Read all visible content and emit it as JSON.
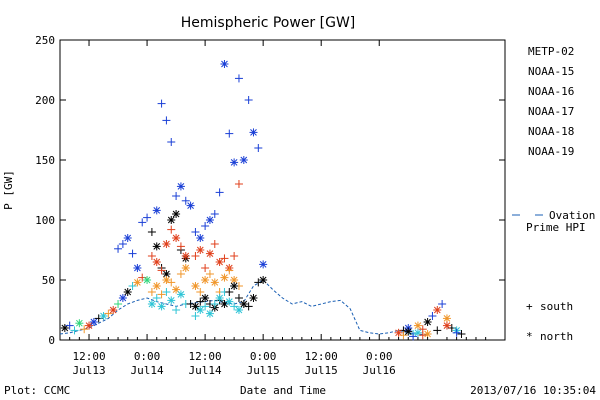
{
  "chart_data": {
    "type": "scatter",
    "title": "Hemispheric Power [GW]",
    "ylabel": "P [GW]",
    "xlabel": "Date and Time",
    "ylim": [
      0,
      250
    ],
    "xlim_hours": [
      -6,
      86
    ],
    "yticks": [
      0,
      50,
      100,
      150,
      200,
      250
    ],
    "xticks": [
      {
        "hour": 0,
        "time": "12:00",
        "date": "Jul13"
      },
      {
        "hour": 12,
        "time": "0:00",
        "date": "Jul14"
      },
      {
        "hour": 24,
        "time": "12:00",
        "date": "Jul14"
      },
      {
        "hour": 36,
        "time": "0:00",
        "date": "Jul15"
      },
      {
        "hour": 48,
        "time": "12:00",
        "date": "Jul15"
      },
      {
        "hour": 60,
        "time": "0:00",
        "date": "Jul16"
      }
    ],
    "series": [
      {
        "name": "METP-02",
        "color": "#000000"
      },
      {
        "name": "NOAA-15",
        "color": "#1a3fd6"
      },
      {
        "name": "NOAA-16",
        "color": "#2ec4d6"
      },
      {
        "name": "NOAA-17",
        "color": "#2ed67a"
      },
      {
        "name": "NOAA-18",
        "color": "#f0962a"
      },
      {
        "name": "NOAA-19",
        "color": "#e0401c"
      }
    ],
    "ovation_label_1": "Ovation",
    "ovation_label_2": "Prime HPI",
    "ovation_color": "#1a5fb4",
    "marker_legend": [
      {
        "symbol": "+",
        "label": "south"
      },
      {
        "symbol": "*",
        "label": "north"
      }
    ],
    "ovation": [
      [
        -6,
        5
      ],
      [
        -4,
        6
      ],
      [
        -2,
        8
      ],
      [
        0,
        10
      ],
      [
        2,
        14
      ],
      [
        4,
        18
      ],
      [
        6,
        25
      ],
      [
        8,
        30
      ],
      [
        10,
        33
      ],
      [
        12,
        35
      ],
      [
        14,
        32
      ],
      [
        16,
        30
      ],
      [
        18,
        28
      ],
      [
        20,
        30
      ],
      [
        22,
        31
      ],
      [
        24,
        32
      ],
      [
        26,
        33
      ],
      [
        28,
        31
      ],
      [
        30,
        30
      ],
      [
        32,
        32
      ],
      [
        34,
        45
      ],
      [
        36,
        50
      ],
      [
        38,
        42
      ],
      [
        40,
        35
      ],
      [
        42,
        30
      ],
      [
        44,
        32
      ],
      [
        46,
        28
      ],
      [
        48,
        30
      ],
      [
        50,
        32
      ],
      [
        52,
        33
      ],
      [
        54,
        26
      ],
      [
        56,
        8
      ],
      [
        58,
        6
      ],
      [
        60,
        5
      ],
      [
        62,
        6
      ],
      [
        64,
        8
      ],
      [
        66,
        6
      ],
      [
        68,
        5
      ],
      [
        70,
        4
      ]
    ],
    "points": [
      [
        -5,
        10,
        0,
        1
      ],
      [
        -4,
        12,
        1,
        0
      ],
      [
        -3,
        8,
        2,
        0
      ],
      [
        -2,
        14,
        3,
        1
      ],
      [
        -1,
        9,
        4,
        0
      ],
      [
        0,
        12,
        5,
        1
      ],
      [
        1,
        15,
        1,
        1
      ],
      [
        2,
        18,
        0,
        0
      ],
      [
        3,
        20,
        2,
        1
      ],
      [
        4,
        22,
        4,
        0
      ],
      [
        5,
        25,
        5,
        1
      ],
      [
        6,
        30,
        3,
        0
      ],
      [
        7,
        35,
        1,
        1
      ],
      [
        8,
        40,
        0,
        1
      ],
      [
        9,
        45,
        2,
        0
      ],
      [
        10,
        48,
        4,
        1
      ],
      [
        11,
        52,
        5,
        0
      ],
      [
        12,
        50,
        3,
        1
      ],
      [
        6,
        76,
        1,
        0
      ],
      [
        7,
        80,
        1,
        0
      ],
      [
        8,
        85,
        1,
        1
      ],
      [
        9,
        72,
        1,
        0
      ],
      [
        10,
        60,
        1,
        1
      ],
      [
        11,
        98,
        1,
        0
      ],
      [
        12,
        102,
        1,
        0
      ],
      [
        14,
        108,
        1,
        1
      ],
      [
        15,
        197,
        1,
        0
      ],
      [
        16,
        183,
        1,
        0
      ],
      [
        17,
        165,
        1,
        0
      ],
      [
        18,
        120,
        1,
        0
      ],
      [
        19,
        128,
        1,
        1
      ],
      [
        20,
        116,
        1,
        0
      ],
      [
        21,
        112,
        1,
        1
      ],
      [
        13,
        90,
        0,
        0
      ],
      [
        14,
        78,
        0,
        1
      ],
      [
        15,
        60,
        0,
        0
      ],
      [
        16,
        55,
        0,
        1
      ],
      [
        17,
        100,
        0,
        1
      ],
      [
        18,
        105,
        0,
        1
      ],
      [
        19,
        75,
        0,
        0
      ],
      [
        20,
        68,
        0,
        1
      ],
      [
        13,
        70,
        5,
        0
      ],
      [
        14,
        65,
        5,
        1
      ],
      [
        15,
        58,
        5,
        0
      ],
      [
        16,
        80,
        5,
        1
      ],
      [
        17,
        92,
        5,
        0
      ],
      [
        18,
        85,
        5,
        1
      ],
      [
        19,
        78,
        5,
        0
      ],
      [
        20,
        70,
        5,
        1
      ],
      [
        13,
        40,
        4,
        0
      ],
      [
        14,
        45,
        4,
        1
      ],
      [
        15,
        38,
        4,
        0
      ],
      [
        16,
        50,
        4,
        1
      ],
      [
        17,
        48,
        4,
        0
      ],
      [
        18,
        42,
        4,
        1
      ],
      [
        19,
        55,
        4,
        0
      ],
      [
        20,
        60,
        4,
        1
      ],
      [
        13,
        30,
        2,
        1
      ],
      [
        14,
        35,
        2,
        0
      ],
      [
        15,
        28,
        2,
        1
      ],
      [
        16,
        40,
        2,
        0
      ],
      [
        17,
        33,
        2,
        1
      ],
      [
        18,
        25,
        2,
        0
      ],
      [
        19,
        38,
        2,
        1
      ],
      [
        20,
        30,
        2,
        0
      ],
      [
        21,
        30,
        0,
        0
      ],
      [
        22,
        28,
        0,
        1
      ],
      [
        23,
        32,
        0,
        0
      ],
      [
        24,
        35,
        0,
        1
      ],
      [
        25,
        30,
        0,
        0
      ],
      [
        26,
        27,
        0,
        1
      ],
      [
        27,
        33,
        0,
        0
      ],
      [
        28,
        30,
        0,
        1
      ],
      [
        22,
        90,
        1,
        0
      ],
      [
        23,
        85,
        1,
        1
      ],
      [
        24,
        95,
        1,
        0
      ],
      [
        25,
        100,
        1,
        1
      ],
      [
        26,
        105,
        1,
        0
      ],
      [
        27,
        123,
        1,
        0
      ],
      [
        28,
        230,
        1,
        1
      ],
      [
        29,
        172,
        1,
        0
      ],
      [
        30,
        148,
        1,
        1
      ],
      [
        31,
        218,
        1,
        0
      ],
      [
        32,
        150,
        1,
        1
      ],
      [
        33,
        200,
        1,
        0
      ],
      [
        34,
        173,
        1,
        1
      ],
      [
        35,
        160,
        1,
        0
      ],
      [
        36,
        63,
        1,
        1
      ],
      [
        22,
        70,
        5,
        0
      ],
      [
        23,
        75,
        5,
        1
      ],
      [
        24,
        60,
        5,
        0
      ],
      [
        25,
        72,
        5,
        1
      ],
      [
        26,
        80,
        5,
        0
      ],
      [
        27,
        65,
        5,
        1
      ],
      [
        28,
        68,
        5,
        0
      ],
      [
        29,
        60,
        5,
        1
      ],
      [
        30,
        70,
        5,
        0
      ],
      [
        31,
        130,
        5,
        0
      ],
      [
        22,
        45,
        4,
        1
      ],
      [
        23,
        40,
        4,
        0
      ],
      [
        24,
        50,
        4,
        1
      ],
      [
        25,
        55,
        4,
        0
      ],
      [
        26,
        48,
        4,
        1
      ],
      [
        27,
        40,
        4,
        0
      ],
      [
        28,
        52,
        4,
        1
      ],
      [
        29,
        58,
        4,
        0
      ],
      [
        30,
        50,
        4,
        1
      ],
      [
        31,
        45,
        4,
        0
      ],
      [
        22,
        20,
        2,
        0
      ],
      [
        23,
        25,
        2,
        1
      ],
      [
        24,
        28,
        2,
        0
      ],
      [
        25,
        22,
        2,
        1
      ],
      [
        26,
        30,
        2,
        0
      ],
      [
        27,
        35,
        2,
        1
      ],
      [
        28,
        40,
        2,
        0
      ],
      [
        29,
        32,
        2,
        1
      ],
      [
        30,
        28,
        2,
        0
      ],
      [
        31,
        25,
        2,
        1
      ],
      [
        29,
        40,
        0,
        0
      ],
      [
        30,
        45,
        0,
        1
      ],
      [
        31,
        35,
        0,
        0
      ],
      [
        32,
        30,
        0,
        1
      ],
      [
        33,
        28,
        0,
        0
      ],
      [
        34,
        35,
        0,
        1
      ],
      [
        35,
        48,
        0,
        0
      ],
      [
        36,
        50,
        0,
        1
      ],
      [
        65,
        8,
        0,
        0
      ],
      [
        66,
        10,
        1,
        1
      ],
      [
        67,
        5,
        2,
        0
      ],
      [
        68,
        12,
        4,
        1
      ],
      [
        69,
        9,
        5,
        0
      ],
      [
        70,
        15,
        0,
        1
      ],
      [
        71,
        20,
        1,
        0
      ],
      [
        72,
        25,
        5,
        1
      ],
      [
        73,
        30,
        1,
        0
      ],
      [
        74,
        18,
        4,
        1
      ],
      [
        75,
        10,
        0,
        0
      ],
      [
        76,
        8,
        2,
        1
      ],
      [
        77,
        5,
        0,
        0
      ],
      [
        64,
        6,
        5,
        1
      ],
      [
        65,
        4,
        4,
        0
      ],
      [
        66,
        7,
        0,
        1
      ],
      [
        67,
        3,
        1,
        0
      ],
      [
        68,
        6,
        2,
        1
      ],
      [
        69,
        4,
        5,
        0
      ],
      [
        70,
        5,
        4,
        1
      ],
      [
        72,
        8,
        0,
        0
      ],
      [
        74,
        12,
        5,
        1
      ],
      [
        76,
        6,
        1,
        0
      ]
    ]
  },
  "footer": {
    "plot_label": "Plot: CCMC",
    "timestamp": "2013/07/16 10:35:04"
  }
}
